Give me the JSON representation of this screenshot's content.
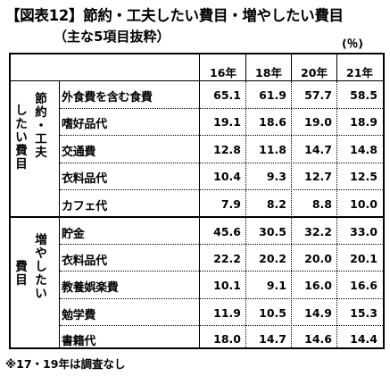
{
  "title": "【図表12】節約・工夫したい費目・増やしたい費目",
  "subtitle": "（主な5項目抜粋）",
  "unit": "(％)",
  "footnote": "※17・19年は調査なし",
  "years": [
    "16年",
    "18年",
    "20年",
    "21年"
  ],
  "groups": [
    {
      "label_col1": [
        "し",
        "た",
        "い",
        "費",
        "目"
      ],
      "label_col2": [
        "節",
        "約",
        "・",
        "工",
        "夫"
      ],
      "rows": [
        {
          "item": "外食費を含む食費",
          "values": [
            "65.1",
            "61.9",
            "57.7",
            "58.5"
          ]
        },
        {
          "item": "嗜好品代",
          "values": [
            "19.1",
            "18.6",
            "19.0",
            "18.9"
          ]
        },
        {
          "item": "交通費",
          "values": [
            "12.8",
            "11.8",
            "14.7",
            "14.8"
          ]
        },
        {
          "item": "衣料品代",
          "values": [
            "10.4",
            "9.3",
            "12.7",
            "12.5"
          ]
        },
        {
          "item": "カフェ代",
          "values": [
            "7.9",
            "8.2",
            "8.8",
            "10.0"
          ]
        }
      ]
    },
    {
      "label_col1": [
        "費",
        "目"
      ],
      "label_col2": [
        "増",
        "や",
        "し",
        "た",
        "い"
      ],
      "rows": [
        {
          "item": "貯金",
          "values": [
            "45.6",
            "30.5",
            "32.2",
            "33.0"
          ]
        },
        {
          "item": "衣料品代",
          "values": [
            "22.2",
            "20.2",
            "20.0",
            "20.1"
          ]
        },
        {
          "item": "教養娯楽費",
          "values": [
            "10.1",
            "9.1",
            "16.0",
            "16.6"
          ]
        },
        {
          "item": "勉学費",
          "values": [
            "11.9",
            "10.5",
            "14.9",
            "15.3"
          ]
        },
        {
          "item": "書籍代",
          "values": [
            "18.0",
            "14.7",
            "14.6",
            "14.4"
          ]
        }
      ]
    }
  ]
}
